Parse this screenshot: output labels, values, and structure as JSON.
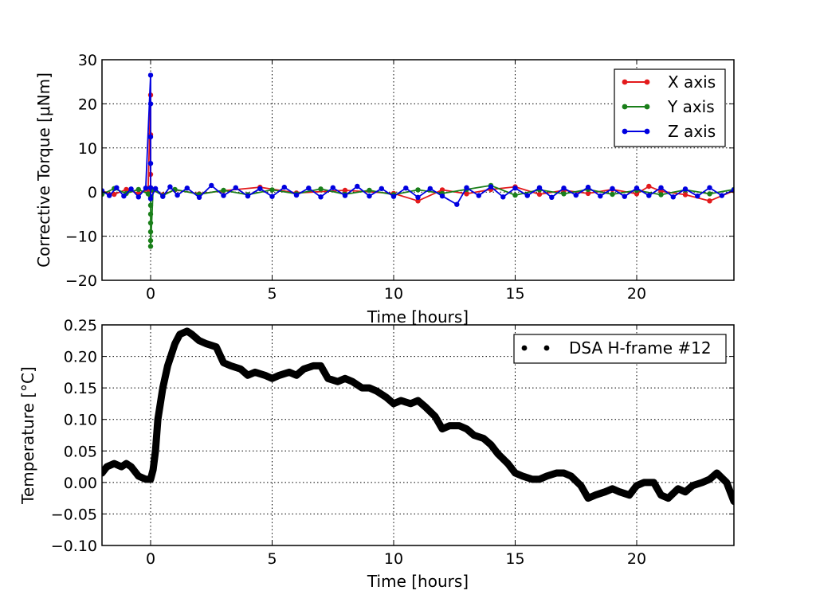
{
  "chart_data": [
    {
      "type": "line",
      "xlabel": "Time [hours]",
      "ylabel": "Corrective Torque [μNm]",
      "xlim": [
        -2,
        24
      ],
      "ylim": [
        -20,
        30
      ],
      "xticks": [
        0,
        5,
        10,
        15,
        20
      ],
      "yticks": [
        -20,
        -10,
        0,
        10,
        20,
        30
      ],
      "xtick_labels": [
        "0",
        "5",
        "10",
        "15",
        "20"
      ],
      "ytick_labels": [
        "−20",
        "−10",
        "0",
        "10",
        "20",
        "30"
      ],
      "grid": true,
      "legend_position": "top-right",
      "series": [
        {
          "name": "X axis",
          "color": "#e31a1c",
          "marker": "circle",
          "x": [
            -2,
            -1.5,
            -1,
            -0.5,
            -0.1,
            0,
            0,
            0,
            0,
            0,
            0.1,
            0.5,
            1,
            2,
            3,
            4.5,
            6,
            8,
            10,
            11,
            12,
            13,
            14,
            15,
            16,
            17,
            18,
            19,
            20,
            20.5,
            21,
            22,
            23,
            24
          ],
          "y": [
            0.2,
            -0.5,
            0.6,
            -0.3,
            0.5,
            22,
            13,
            4,
            1,
            0.3,
            0.4,
            -0.6,
            0.5,
            -0.4,
            0.3,
            1.1,
            -0.2,
            0.4,
            -0.3,
            -2,
            0.5,
            -0.4,
            0.6,
            1.2,
            -0.5,
            0.4,
            -0.3,
            0.6,
            -0.4,
            1.3,
            0.2,
            -0.6,
            -2,
            0.3
          ]
        },
        {
          "name": "Y axis",
          "color": "#1a7f1a",
          "marker": "circle",
          "x": [
            -2,
            -1.5,
            -1,
            -0.5,
            -0.1,
            0,
            0,
            0,
            0,
            0,
            0,
            0,
            0.1,
            0.5,
            1,
            2,
            3,
            4,
            5,
            6,
            7,
            8,
            9,
            10,
            11,
            12,
            13,
            14,
            15,
            16,
            17,
            18,
            19,
            20,
            21,
            22,
            23,
            24
          ],
          "y": [
            -0.5,
            0.8,
            -0.3,
            0.6,
            -0.4,
            -1,
            -3,
            -5,
            -7,
            -9,
            -11,
            -12.3,
            0.5,
            -0.8,
            0.6,
            -0.5,
            0.4,
            -0.6,
            0.5,
            -0.4,
            0.7,
            -0.5,
            0.4,
            -0.6,
            0.5,
            -0.3,
            0.6,
            1.5,
            -0.7,
            0.5,
            -0.4,
            0.6,
            -0.5,
            0.4,
            -0.6,
            0.5,
            -0.4,
            0.6
          ]
        },
        {
          "name": "Z axis",
          "color": "#0000e0",
          "marker": "circle",
          "x": [
            -2,
            -1.7,
            -1.4,
            -1.1,
            -0.8,
            -0.5,
            -0.2,
            0,
            0,
            0,
            0,
            0,
            0,
            0.2,
            0.5,
            0.8,
            1.1,
            1.5,
            2,
            2.5,
            3,
            3.5,
            4,
            4.5,
            5,
            5.5,
            6,
            6.5,
            7,
            7.5,
            8,
            8.5,
            9,
            9.5,
            10,
            10.5,
            11,
            11.5,
            12,
            12.6,
            13,
            13.5,
            14,
            14.5,
            15,
            15.5,
            16,
            16.5,
            17,
            17.5,
            18,
            18.5,
            19,
            19.5,
            20,
            20.5,
            21,
            21.5,
            22,
            22.5,
            23,
            23.5,
            24
          ],
          "y": [
            0.3,
            -0.8,
            1.0,
            -0.9,
            0.7,
            -1.1,
            0.9,
            26.5,
            20,
            12.5,
            6.5,
            1,
            -1.5,
            0.8,
            -1.0,
            1.2,
            -0.7,
            0.9,
            -1.2,
            1.5,
            -0.8,
            1.0,
            -0.9,
            0.8,
            -1.0,
            1.1,
            -0.7,
            0.9,
            -1.1,
            1.0,
            -0.8,
            1.3,
            -0.9,
            0.8,
            -1.0,
            0.9,
            -1.2,
            0.8,
            -0.9,
            -2.8,
            1.0,
            -0.8,
            1.2,
            -1.1,
            0.9,
            -0.8,
            1.0,
            -1.2,
            0.9,
            -0.7,
            1.1,
            -0.9,
            0.8,
            -1.0,
            0.9,
            -0.8,
            1.0,
            -1.1,
            0.7,
            -0.9,
            1.0,
            -0.8,
            0.5
          ]
        }
      ]
    },
    {
      "type": "line",
      "xlabel": "Time [hours]",
      "ylabel": "Temperature [°C]",
      "xlim": [
        -2,
        24
      ],
      "ylim": [
        -0.1,
        0.25
      ],
      "xticks": [
        0,
        5,
        10,
        15,
        20
      ],
      "yticks": [
        -0.1,
        -0.05,
        0,
        0.05,
        0.1,
        0.15,
        0.2,
        0.25
      ],
      "xtick_labels": [
        "0",
        "5",
        "10",
        "15",
        "20"
      ],
      "ytick_labels": [
        "−0.10",
        "−0.05",
        "0.00",
        "0.05",
        "0.10",
        "0.15",
        "0.20",
        "0.25"
      ],
      "grid": true,
      "legend_position": "top-right",
      "series": [
        {
          "name": "DSA H-frame #12",
          "color": "#000000",
          "marker": "circle",
          "x": [
            -2,
            -1.8,
            -1.5,
            -1.2,
            -1.0,
            -0.8,
            -0.5,
            -0.2,
            0,
            0.1,
            0.2,
            0.3,
            0.5,
            0.7,
            1.0,
            1.2,
            1.5,
            1.7,
            2.0,
            2.3,
            2.7,
            3.0,
            3.3,
            3.7,
            4.0,
            4.3,
            4.7,
            5.0,
            5.3,
            5.7,
            6.0,
            6.3,
            6.7,
            7.0,
            7.3,
            7.7,
            8.0,
            8.3,
            8.7,
            9.0,
            9.3,
            9.7,
            10.0,
            10.3,
            10.7,
            11.0,
            11.3,
            11.7,
            12.0,
            12.3,
            12.7,
            13.0,
            13.3,
            13.7,
            14.0,
            14.3,
            14.7,
            15.0,
            15.3,
            15.7,
            16.0,
            16.3,
            16.7,
            17.0,
            17.3,
            17.7,
            18.0,
            18.3,
            18.7,
            19.0,
            19.3,
            19.7,
            20.0,
            20.3,
            20.7,
            21.0,
            21.3,
            21.7,
            22.0,
            22.3,
            22.7,
            23.0,
            23.3,
            23.7,
            24.0
          ],
          "y": [
            0.015,
            0.025,
            0.03,
            0.025,
            0.03,
            0.025,
            0.01,
            0.005,
            0.005,
            0.02,
            0.05,
            0.1,
            0.15,
            0.185,
            0.22,
            0.235,
            0.24,
            0.235,
            0.225,
            0.22,
            0.215,
            0.19,
            0.185,
            0.18,
            0.17,
            0.175,
            0.17,
            0.165,
            0.17,
            0.175,
            0.17,
            0.18,
            0.185,
            0.185,
            0.165,
            0.16,
            0.165,
            0.16,
            0.15,
            0.15,
            0.145,
            0.135,
            0.125,
            0.13,
            0.125,
            0.13,
            0.12,
            0.105,
            0.085,
            0.09,
            0.09,
            0.085,
            0.075,
            0.07,
            0.06,
            0.045,
            0.03,
            0.015,
            0.01,
            0.005,
            0.005,
            0.01,
            0.015,
            0.015,
            0.01,
            -0.005,
            -0.025,
            -0.02,
            -0.015,
            -0.01,
            -0.015,
            -0.02,
            -0.005,
            0,
            0,
            -0.02,
            -0.025,
            -0.01,
            -0.015,
            -0.005,
            0,
            0.005,
            0.015,
            0.0,
            -0.03
          ]
        }
      ]
    }
  ]
}
